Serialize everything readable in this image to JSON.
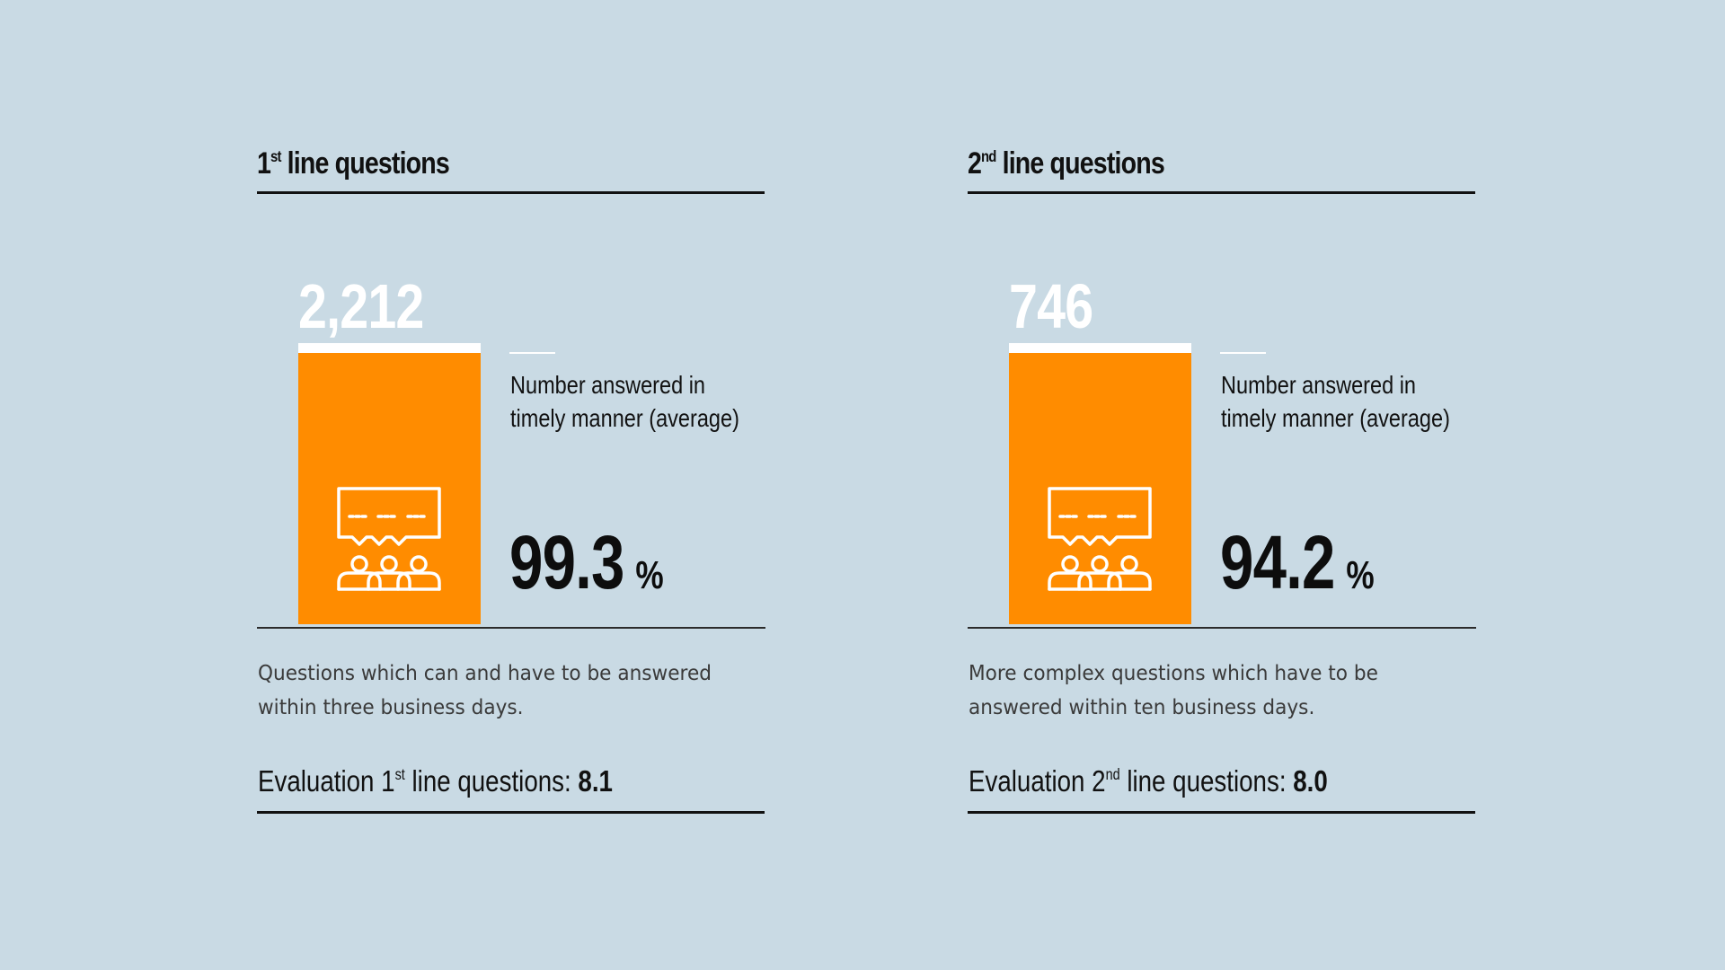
{
  "colors": {
    "background": "#c9dae4",
    "bar": "#ff8c00",
    "text": "#111111",
    "bar_value_text": "#ffffff"
  },
  "panels": [
    {
      "title_prefix": "1",
      "title_sup": "st",
      "title_rest": " line questions",
      "bar_value": "2,212",
      "icon": "speech-bubble-group-icon",
      "metric_label": "Number answered in timely manner (average)",
      "metric_value": "99.3",
      "metric_unit": "%",
      "description": "Questions which can and have to be answered within three business days.",
      "eval_prefix": "Evaluation 1",
      "eval_sup": "st",
      "eval_rest": " line questions: ",
      "eval_score": "8.1"
    },
    {
      "title_prefix": "2",
      "title_sup": "nd",
      "title_rest": " line questions",
      "bar_value": "746",
      "icon": "speech-bubble-group-icon",
      "metric_label": "Number answered in timely manner (average)",
      "metric_value": "94.2",
      "metric_unit": "%",
      "description": "More complex questions which have to be answered within ten business days.",
      "eval_prefix": "Evaluation 2",
      "eval_sup": "nd",
      "eval_rest": " line questions: ",
      "eval_score": "8.0"
    }
  ]
}
